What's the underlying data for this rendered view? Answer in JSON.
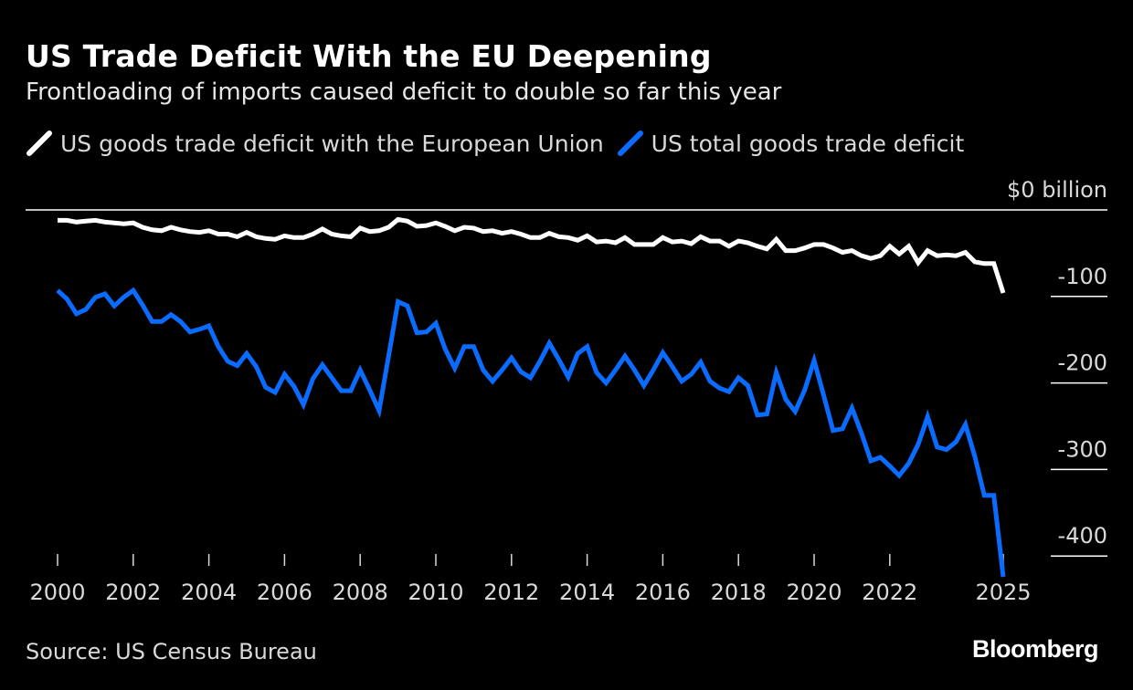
{
  "title": "US Trade Deficit With the EU Deepening",
  "subtitle": "Frontloading of imports caused deficit to double so far this year",
  "source": "Source: US Census Bureau",
  "logo": "Bloomberg",
  "colors": {
    "background": "#000000",
    "eu_series": "#ffffff",
    "total_series": "#0a6cff",
    "grid": "#ffffff",
    "text": "#d9d9d9"
  },
  "chart_data": {
    "type": "line",
    "title": "US Trade Deficit With the EU Deepening",
    "subtitle": "Frontloading of imports caused deficit to double so far this year",
    "x_start": "2000-Q1",
    "x_end": "2025-Q1",
    "x_frequency": "quarterly",
    "xlim": [
      2000,
      2025
    ],
    "ylim": [
      -430,
      0
    ],
    "y_unit_label": "$0 billion",
    "yticks": [
      0,
      -100,
      -200,
      -300,
      -400
    ],
    "ytick_labels": [
      "$0 billion",
      "-100",
      "-200",
      "-300",
      "-400"
    ],
    "xticks": [
      2000,
      2002,
      2004,
      2006,
      2008,
      2010,
      2012,
      2014,
      2016,
      2018,
      2020,
      2022,
      2025
    ],
    "xtick_labels": [
      "2000",
      "2002",
      "2004",
      "2006",
      "2008",
      "2010",
      "2012",
      "2014",
      "2016",
      "2018",
      "2020",
      "2022",
      "2025"
    ],
    "grid": "horizontal",
    "legend_placement": "top-left",
    "series": [
      {
        "name": "US goods trade deficit with the European Union",
        "color": "#ffffff",
        "values": [
          -12,
          -12,
          -14,
          -13,
          -12,
          -14,
          -15,
          -16,
          -15,
          -20,
          -23,
          -24,
          -20,
          -23,
          -25,
          -26,
          -24,
          -28,
          -28,
          -31,
          -26,
          -31,
          -33,
          -34,
          -30,
          -32,
          -32,
          -28,
          -22,
          -28,
          -30,
          -31,
          -21,
          -25,
          -24,
          -20,
          -11,
          -13,
          -19,
          -18,
          -15,
          -19,
          -24,
          -20,
          -21,
          -25,
          -24,
          -27,
          -25,
          -28,
          -32,
          -32,
          -27,
          -31,
          -32,
          -35,
          -30,
          -37,
          -36,
          -38,
          -32,
          -40,
          -40,
          -40,
          -32,
          -37,
          -36,
          -39,
          -31,
          -36,
          -36,
          -42,
          -36,
          -38,
          -42,
          -45,
          -34,
          -47,
          -47,
          -44,
          -40,
          -40,
          -44,
          -49,
          -47,
          -53,
          -56,
          -53,
          -42,
          -51,
          -42,
          -61,
          -47,
          -53,
          -52,
          -53,
          -49,
          -60,
          -62,
          -62,
          -96
        ]
      },
      {
        "name": "US total goods trade deficit",
        "color": "#0a6cff",
        "values": [
          -93,
          -103,
          -120,
          -115,
          -101,
          -97,
          -111,
          -101,
          -93,
          -110,
          -129,
          -129,
          -121,
          -129,
          -141,
          -138,
          -134,
          -158,
          -175,
          -180,
          -166,
          -181,
          -205,
          -211,
          -190,
          -204,
          -225,
          -195,
          -179,
          -194,
          -209,
          -209,
          -185,
          -208,
          -232,
          -169,
          -106,
          -111,
          -142,
          -141,
          -131,
          -161,
          -183,
          -158,
          -158,
          -185,
          -198,
          -185,
          -171,
          -187,
          -194,
          -175,
          -154,
          -173,
          -193,
          -166,
          -158,
          -188,
          -200,
          -185,
          -169,
          -185,
          -203,
          -185,
          -165,
          -181,
          -198,
          -190,
          -176,
          -198,
          -206,
          -210,
          -194,
          -203,
          -237,
          -236,
          -188,
          -219,
          -233,
          -208,
          -174,
          -214,
          -255,
          -253,
          -229,
          -258,
          -290,
          -286,
          -296,
          -307,
          -293,
          -271,
          -239,
          -274,
          -277,
          -268,
          -248,
          -285,
          -330,
          -330,
          -424
        ]
      }
    ]
  }
}
